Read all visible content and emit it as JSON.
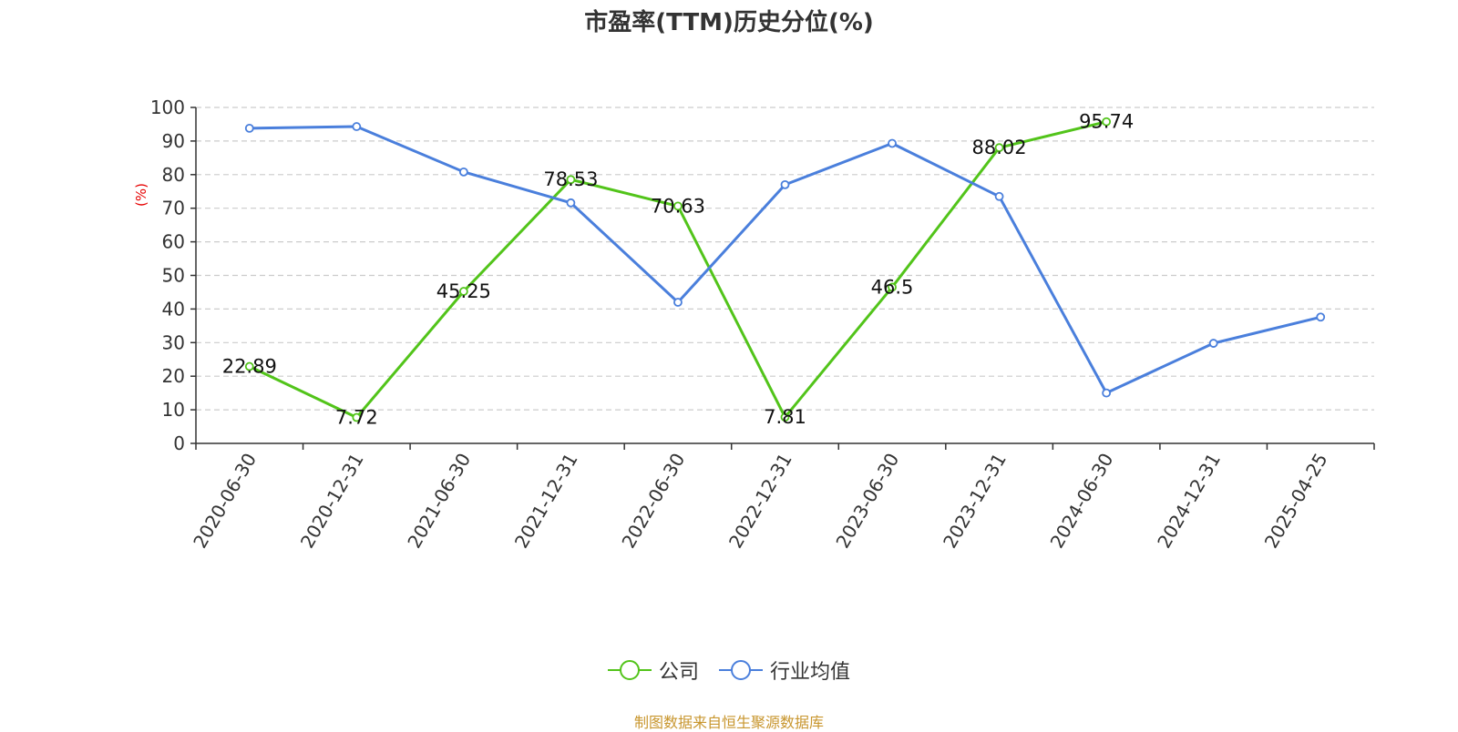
{
  "chart_data": {
    "type": "line",
    "title": "市盈率(TTM)历史分位(%)",
    "ylabel": "(%)",
    "xlabel": "",
    "ylim": [
      0,
      100
    ],
    "yticks": [
      0,
      10,
      20,
      30,
      40,
      50,
      60,
      70,
      80,
      90,
      100
    ],
    "grid": true,
    "legend_position": "bottom",
    "categories": [
      "2020-06-30",
      "2020-12-31",
      "2021-06-30",
      "2021-12-31",
      "2022-06-30",
      "2022-12-31",
      "2023-06-30",
      "2023-12-31",
      "2024-06-30",
      "2024-12-31",
      "2025-04-25"
    ],
    "series": [
      {
        "name": "公司",
        "color": "#52c41a",
        "show_labels": true,
        "values": [
          22.89,
          7.72,
          45.25,
          78.53,
          70.63,
          7.81,
          46.5,
          88.02,
          95.74,
          null,
          null
        ],
        "labels": [
          "22.89",
          "7.72",
          "45.25",
          "78.53",
          "70.63",
          "7.81",
          "46.5",
          "88.02",
          "95.74",
          null,
          null
        ]
      },
      {
        "name": "行业均值",
        "color": "#4a7fdc",
        "show_labels": false,
        "values": [
          93.8,
          94.3,
          80.8,
          71.6,
          42.0,
          77.0,
          89.3,
          73.5,
          15.0,
          29.8,
          37.6
        ]
      }
    ]
  },
  "source_note": "制图数据来自恒生聚源数据库"
}
